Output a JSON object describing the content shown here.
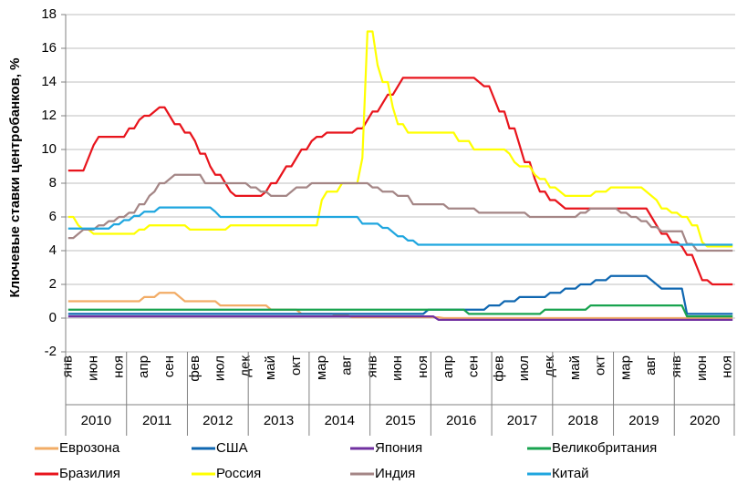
{
  "chart_data": {
    "type": "line",
    "y_label": "Ключевые ставки центробанков, %",
    "categories": [
      "янв",
      null,
      null,
      null,
      null,
      "июн",
      null,
      null,
      null,
      null,
      "ноя",
      null,
      null,
      null,
      null,
      "апр",
      null,
      null,
      null,
      null,
      "сен",
      null,
      null,
      null,
      null,
      "фев",
      null,
      null,
      null,
      null,
      "июл",
      null,
      null,
      null,
      null,
      "дек",
      null,
      null,
      null,
      null,
      "май",
      null,
      null,
      null,
      null,
      "окт",
      null,
      null,
      null,
      null,
      "мар",
      null,
      null,
      null,
      null,
      "авг",
      null,
      null,
      null,
      null,
      "янв",
      null,
      null,
      null,
      null,
      "июн",
      null,
      null,
      null,
      null,
      "ноя",
      null,
      null,
      null,
      null,
      "апр",
      null,
      null,
      null,
      null,
      "сен",
      null,
      null,
      null,
      null,
      "фев",
      null,
      null,
      null,
      null,
      "июл",
      null,
      null,
      null,
      null,
      "дек",
      null,
      null,
      null,
      null,
      "май",
      null,
      null,
      null,
      null,
      "окт",
      null,
      null,
      null,
      null,
      "мар",
      null,
      null,
      null,
      null,
      "авг",
      null,
      null,
      null,
      null,
      "янв",
      null,
      null,
      null,
      null,
      "июн",
      null,
      null,
      null,
      null,
      "ноя",
      null
    ],
    "x_groups": [
      "2010",
      "2011",
      "2012",
      "2013",
      "2014",
      "2015",
      "2016",
      "2017",
      "2018",
      "2019",
      "2020"
    ],
    "ylim": [
      -2,
      18
    ],
    "yticks": [
      -2,
      0,
      2,
      4,
      6,
      8,
      10,
      12,
      14,
      16,
      18
    ],
    "grid": true,
    "series": [
      {
        "name": "Еврозона",
        "color": "#f2ac66",
        "values": [
          1,
          1,
          1,
          1,
          1,
          1,
          1,
          1,
          1,
          1,
          1,
          1,
          1,
          1,
          1,
          1.25,
          1.25,
          1.25,
          1.5,
          1.5,
          1.5,
          1.5,
          1.25,
          1,
          1,
          1,
          1,
          1,
          1,
          1,
          0.75,
          0.75,
          0.75,
          0.75,
          0.75,
          0.75,
          0.75,
          0.75,
          0.75,
          0.75,
          0.5,
          0.5,
          0.5,
          0.5,
          0.5,
          0.5,
          0.25,
          0.25,
          0.25,
          0.25,
          0.25,
          0.25,
          0.25,
          0.15,
          0.15,
          0.15,
          0.05,
          0.05,
          0.05,
          0.05,
          0.05,
          0.05,
          0.05,
          0.05,
          0.05,
          0.05,
          0.05,
          0.05,
          0.05,
          0.05,
          0.05,
          0.05,
          0.05,
          0.05,
          0,
          0,
          0,
          0,
          0,
          0,
          0,
          0,
          0,
          0,
          0,
          0,
          0,
          0,
          0,
          0,
          0,
          0,
          0,
          0,
          0,
          0,
          0,
          0,
          0,
          0,
          0,
          0,
          0,
          0,
          0,
          0,
          0,
          0,
          0,
          0,
          0,
          0,
          0,
          0,
          0,
          0,
          0,
          0,
          0,
          0,
          0,
          0,
          0,
          0,
          0,
          0,
          0,
          0,
          0,
          0,
          0,
          0
        ]
      },
      {
        "name": "США",
        "color": "#0f67b1",
        "values": [
          0.25,
          0.25,
          0.25,
          0.25,
          0.25,
          0.25,
          0.25,
          0.25,
          0.25,
          0.25,
          0.25,
          0.25,
          0.25,
          0.25,
          0.25,
          0.25,
          0.25,
          0.25,
          0.25,
          0.25,
          0.25,
          0.25,
          0.25,
          0.25,
          0.25,
          0.25,
          0.25,
          0.25,
          0.25,
          0.25,
          0.25,
          0.25,
          0.25,
          0.25,
          0.25,
          0.25,
          0.25,
          0.25,
          0.25,
          0.25,
          0.25,
          0.25,
          0.25,
          0.25,
          0.25,
          0.25,
          0.25,
          0.25,
          0.25,
          0.25,
          0.25,
          0.25,
          0.25,
          0.25,
          0.25,
          0.25,
          0.25,
          0.25,
          0.25,
          0.25,
          0.25,
          0.25,
          0.25,
          0.25,
          0.25,
          0.25,
          0.25,
          0.25,
          0.25,
          0.25,
          0.25,
          0.5,
          0.5,
          0.5,
          0.5,
          0.5,
          0.5,
          0.5,
          0.5,
          0.5,
          0.5,
          0.5,
          0.5,
          0.75,
          0.75,
          0.75,
          1,
          1,
          1,
          1.25,
          1.25,
          1.25,
          1.25,
          1.25,
          1.25,
          1.5,
          1.5,
          1.5,
          1.75,
          1.75,
          1.75,
          2,
          2,
          2,
          2.25,
          2.25,
          2.25,
          2.5,
          2.5,
          2.5,
          2.5,
          2.5,
          2.5,
          2.5,
          2.5,
          2.25,
          2,
          1.75,
          1.75,
          1.75,
          1.75,
          1.75,
          0.25,
          0.25,
          0.25,
          0.25,
          0.25,
          0.25,
          0.25,
          0.25,
          0.25,
          0.25
        ]
      },
      {
        "name": "Япония",
        "color": "#7030a0",
        "values": [
          0.1,
          0.1,
          0.1,
          0.1,
          0.1,
          0.1,
          0.1,
          0.1,
          0.1,
          0.1,
          0.1,
          0.1,
          0.1,
          0.1,
          0.1,
          0.1,
          0.1,
          0.1,
          0.1,
          0.1,
          0.1,
          0.1,
          0.1,
          0.1,
          0.1,
          0.1,
          0.1,
          0.1,
          0.1,
          0.1,
          0.1,
          0.1,
          0.1,
          0.1,
          0.1,
          0.1,
          0.1,
          0.1,
          0.1,
          0.1,
          0.1,
          0.1,
          0.1,
          0.1,
          0.1,
          0.1,
          0.1,
          0.1,
          0.1,
          0.1,
          0.1,
          0.1,
          0.1,
          0.1,
          0.1,
          0.1,
          0.1,
          0.1,
          0.1,
          0.1,
          0.1,
          0.1,
          0.1,
          0.1,
          0.1,
          0.1,
          0.1,
          0.1,
          0.1,
          0.1,
          0.1,
          0.1,
          0.1,
          -0.1,
          -0.1,
          -0.1,
          -0.1,
          -0.1,
          -0.1,
          -0.1,
          -0.1,
          -0.1,
          -0.1,
          -0.1,
          -0.1,
          -0.1,
          -0.1,
          -0.1,
          -0.1,
          -0.1,
          -0.1,
          -0.1,
          -0.1,
          -0.1,
          -0.1,
          -0.1,
          -0.1,
          -0.1,
          -0.1,
          -0.1,
          -0.1,
          -0.1,
          -0.1,
          -0.1,
          -0.1,
          -0.1,
          -0.1,
          -0.1,
          -0.1,
          -0.1,
          -0.1,
          -0.1,
          -0.1,
          -0.1,
          -0.1,
          -0.1,
          -0.1,
          -0.1,
          -0.1,
          -0.1,
          -0.1,
          -0.1,
          -0.1,
          -0.1,
          -0.1,
          -0.1,
          -0.1,
          -0.1,
          -0.1,
          -0.1,
          -0.1,
          -0.1
        ]
      },
      {
        "name": "Великобритания",
        "color": "#18a34f",
        "values": [
          0.5,
          0.5,
          0.5,
          0.5,
          0.5,
          0.5,
          0.5,
          0.5,
          0.5,
          0.5,
          0.5,
          0.5,
          0.5,
          0.5,
          0.5,
          0.5,
          0.5,
          0.5,
          0.5,
          0.5,
          0.5,
          0.5,
          0.5,
          0.5,
          0.5,
          0.5,
          0.5,
          0.5,
          0.5,
          0.5,
          0.5,
          0.5,
          0.5,
          0.5,
          0.5,
          0.5,
          0.5,
          0.5,
          0.5,
          0.5,
          0.5,
          0.5,
          0.5,
          0.5,
          0.5,
          0.5,
          0.5,
          0.5,
          0.5,
          0.5,
          0.5,
          0.5,
          0.5,
          0.5,
          0.5,
          0.5,
          0.5,
          0.5,
          0.5,
          0.5,
          0.5,
          0.5,
          0.5,
          0.5,
          0.5,
          0.5,
          0.5,
          0.5,
          0.5,
          0.5,
          0.5,
          0.5,
          0.5,
          0.5,
          0.5,
          0.5,
          0.5,
          0.5,
          0.5,
          0.25,
          0.25,
          0.25,
          0.25,
          0.25,
          0.25,
          0.25,
          0.25,
          0.25,
          0.25,
          0.25,
          0.25,
          0.25,
          0.25,
          0.25,
          0.5,
          0.5,
          0.5,
          0.5,
          0.5,
          0.5,
          0.5,
          0.5,
          0.5,
          0.75,
          0.75,
          0.75,
          0.75,
          0.75,
          0.75,
          0.75,
          0.75,
          0.75,
          0.75,
          0.75,
          0.75,
          0.75,
          0.75,
          0.75,
          0.75,
          0.75,
          0.75,
          0.75,
          0.1,
          0.1,
          0.1,
          0.1,
          0.1,
          0.1,
          0.1,
          0.1,
          0.1,
          0.1
        ]
      },
      {
        "name": "Бразилия",
        "color": "#e8141c",
        "values": [
          8.75,
          8.75,
          8.75,
          8.75,
          9.5,
          10.25,
          10.75,
          10.75,
          10.75,
          10.75,
          10.75,
          10.75,
          11.25,
          11.25,
          11.75,
          12,
          12,
          12.25,
          12.5,
          12.5,
          12,
          11.5,
          11.5,
          11,
          11,
          10.5,
          9.75,
          9.75,
          9,
          8.5,
          8.5,
          8,
          7.5,
          7.25,
          7.25,
          7.25,
          7.25,
          7.25,
          7.25,
          7.5,
          8,
          8,
          8.5,
          9,
          9,
          9.5,
          10,
          10,
          10.5,
          10.75,
          10.75,
          11,
          11,
          11,
          11,
          11,
          11,
          11.25,
          11.25,
          11.75,
          12.25,
          12.25,
          12.75,
          13.25,
          13.25,
          13.75,
          14.25,
          14.25,
          14.25,
          14.25,
          14.25,
          14.25,
          14.25,
          14.25,
          14.25,
          14.25,
          14.25,
          14.25,
          14.25,
          14.25,
          14.25,
          14,
          13.75,
          13.75,
          13,
          12.25,
          12.25,
          11.25,
          11.25,
          10.25,
          9.25,
          9.25,
          8.25,
          7.5,
          7.5,
          7,
          7,
          6.75,
          6.5,
          6.5,
          6.5,
          6.5,
          6.5,
          6.5,
          6.5,
          6.5,
          6.5,
          6.5,
          6.5,
          6.5,
          6.5,
          6.5,
          6.5,
          6.5,
          6.5,
          6,
          5.5,
          5,
          5,
          4.5,
          4.5,
          4.25,
          3.75,
          3.75,
          3,
          2.25,
          2.25,
          2,
          2,
          2,
          2,
          2
        ]
      },
      {
        "name": "Россия",
        "color": "#ffff00",
        "values": [
          6,
          6,
          5.5,
          5.25,
          5.25,
          5,
          5,
          5,
          5,
          5,
          5,
          5,
          5,
          5,
          5.25,
          5.25,
          5.5,
          5.5,
          5.5,
          5.5,
          5.5,
          5.5,
          5.5,
          5.5,
          5.25,
          5.25,
          5.25,
          5.25,
          5.25,
          5.25,
          5.25,
          5.25,
          5.5,
          5.5,
          5.5,
          5.5,
          5.5,
          5.5,
          5.5,
          5.5,
          5.5,
          5.5,
          5.5,
          5.5,
          5.5,
          5.5,
          5.5,
          5.5,
          5.5,
          5.5,
          7,
          7.5,
          7.5,
          7.5,
          8,
          8,
          8,
          8,
          9.5,
          17,
          17,
          15,
          14,
          14,
          12.5,
          11.5,
          11.5,
          11,
          11,
          11,
          11,
          11,
          11,
          11,
          11,
          11,
          11,
          10.5,
          10.5,
          10.5,
          10,
          10,
          10,
          10,
          10,
          10,
          10,
          9.75,
          9.25,
          9,
          9,
          9,
          8.5,
          8.25,
          8.25,
          7.75,
          7.75,
          7.5,
          7.25,
          7.25,
          7.25,
          7.25,
          7.25,
          7.25,
          7.5,
          7.5,
          7.5,
          7.75,
          7.75,
          7.75,
          7.75,
          7.75,
          7.75,
          7.75,
          7.5,
          7.25,
          7,
          6.5,
          6.5,
          6.25,
          6.25,
          6,
          6,
          5.5,
          5.5,
          4.5,
          4.25,
          4.25,
          4.25,
          4.25,
          4.25,
          4.25
        ]
      },
      {
        "name": "Индия",
        "color": "#a48686",
        "values": [
          4.75,
          4.75,
          5,
          5.25,
          5.25,
          5.25,
          5.5,
          5.5,
          5.75,
          5.75,
          6,
          6,
          6.25,
          6.25,
          6.75,
          6.75,
          7.25,
          7.5,
          8,
          8,
          8.25,
          8.5,
          8.5,
          8.5,
          8.5,
          8.5,
          8.5,
          8,
          8,
          8,
          8,
          8,
          8,
          8,
          8,
          8,
          7.75,
          7.75,
          7.5,
          7.5,
          7.25,
          7.25,
          7.25,
          7.25,
          7.5,
          7.75,
          7.75,
          7.75,
          8,
          8,
          8,
          8,
          8,
          8,
          8,
          8,
          8,
          8,
          8,
          8,
          7.75,
          7.75,
          7.5,
          7.5,
          7.5,
          7.25,
          7.25,
          7.25,
          6.75,
          6.75,
          6.75,
          6.75,
          6.75,
          6.75,
          6.75,
          6.5,
          6.5,
          6.5,
          6.5,
          6.5,
          6.5,
          6.25,
          6.25,
          6.25,
          6.25,
          6.25,
          6.25,
          6.25,
          6.25,
          6.25,
          6.25,
          6,
          6,
          6,
          6,
          6,
          6,
          6,
          6,
          6,
          6,
          6.25,
          6.25,
          6.5,
          6.5,
          6.5,
          6.5,
          6.5,
          6.5,
          6.25,
          6.25,
          6,
          6,
          5.75,
          5.75,
          5.4,
          5.4,
          5.15,
          5.15,
          5.15,
          5.15,
          5.15,
          4.4,
          4.4,
          4,
          4,
          4,
          4,
          4,
          4,
          4,
          4
        ]
      },
      {
        "name": "Китай",
        "color": "#1fa6df",
        "values": [
          5.31,
          5.31,
          5.31,
          5.31,
          5.31,
          5.31,
          5.31,
          5.31,
          5.31,
          5.56,
          5.56,
          5.81,
          5.81,
          6.06,
          6.06,
          6.31,
          6.31,
          6.31,
          6.56,
          6.56,
          6.56,
          6.56,
          6.56,
          6.56,
          6.56,
          6.56,
          6.56,
          6.56,
          6.56,
          6.31,
          6,
          6,
          6,
          6,
          6,
          6,
          6,
          6,
          6,
          6,
          6,
          6,
          6,
          6,
          6,
          6,
          6,
          6,
          6,
          6,
          6,
          6,
          6,
          6,
          6,
          6,
          6,
          6,
          5.6,
          5.6,
          5.6,
          5.6,
          5.35,
          5.35,
          5.1,
          4.85,
          4.85,
          4.6,
          4.6,
          4.35,
          4.35,
          4.35,
          4.35,
          4.35,
          4.35,
          4.35,
          4.35,
          4.35,
          4.35,
          4.35,
          4.35,
          4.35,
          4.35,
          4.35,
          4.35,
          4.35,
          4.35,
          4.35,
          4.35,
          4.35,
          4.35,
          4.35,
          4.35,
          4.35,
          4.35,
          4.35,
          4.35,
          4.35,
          4.35,
          4.35,
          4.35,
          4.35,
          4.35,
          4.35,
          4.35,
          4.35,
          4.35,
          4.35,
          4.35,
          4.35,
          4.35,
          4.35,
          4.35,
          4.35,
          4.35,
          4.35,
          4.35,
          4.35,
          4.35,
          4.35,
          4.35,
          4.35,
          4.35,
          4.35,
          4.35,
          4.35,
          4.35,
          4.35,
          4.35,
          4.35,
          4.35,
          4.35
        ]
      }
    ]
  }
}
